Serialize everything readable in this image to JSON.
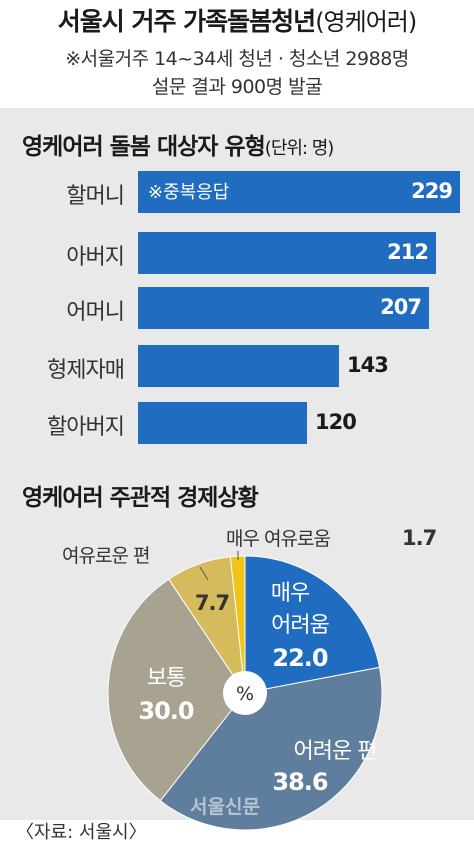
{
  "header": {
    "title": "서울시 거주 가족돌봄청년",
    "title_paren": "(영케어러)",
    "subtitle_line1": "※서울거주 14~34세 청년 · 청소년 2988명",
    "subtitle_line2": "설문 결과 900명 발굴"
  },
  "bar_section": {
    "title": "영케어러 돌봄 대상자 유형",
    "unit": "(단위: 명)",
    "note": "※중복응답"
  },
  "pie_section": {
    "title": "영케어러 주관적 경제상황",
    "center_label": "%"
  },
  "footer": {
    "source": "〈자료: 서울시〉",
    "watermark": "서울신문"
  },
  "colors": {
    "bar": "#1f6cc0",
    "very_hard": "#1f6cc0",
    "hard": "#5f7d9c",
    "normal": "#a8a290",
    "comfortable": "#d6bb5c",
    "very_comfortable": "#f0c419"
  },
  "chart_data": [
    {
      "type": "bar",
      "orientation": "horizontal",
      "title": "영케어러 돌봄 대상자 유형",
      "unit": "(단위: 명)",
      "categories": [
        "할머니",
        "아버지",
        "어머니",
        "형제자매",
        "할아버지"
      ],
      "values": [
        229,
        212,
        207,
        143,
        120
      ],
      "value_labels": [
        "229",
        "212",
        "207",
        "143",
        "120"
      ]
    },
    {
      "type": "pie",
      "title": "영케어러 주관적 경제상황",
      "unit": "%",
      "slices": [
        {
          "label_lines": [
            "매우",
            "어려움"
          ],
          "value": 22.0,
          "value_label": "22.0",
          "color": "#1f6cc0"
        },
        {
          "label_lines": [
            "어려운 편"
          ],
          "value": 38.6,
          "value_label": "38.6",
          "color": "#5f7d9c"
        },
        {
          "label_lines": [
            "보통"
          ],
          "value": 30.0,
          "value_label": "30.0",
          "color": "#a8a290"
        },
        {
          "label_lines": [
            "여유로운 편"
          ],
          "value": 7.7,
          "value_label": "7.7",
          "color": "#d6bb5c"
        },
        {
          "label_lines": [
            "매우 여유로움"
          ],
          "value": 1.7,
          "value_label": "1.7",
          "color": "#f0c419"
        }
      ]
    }
  ]
}
